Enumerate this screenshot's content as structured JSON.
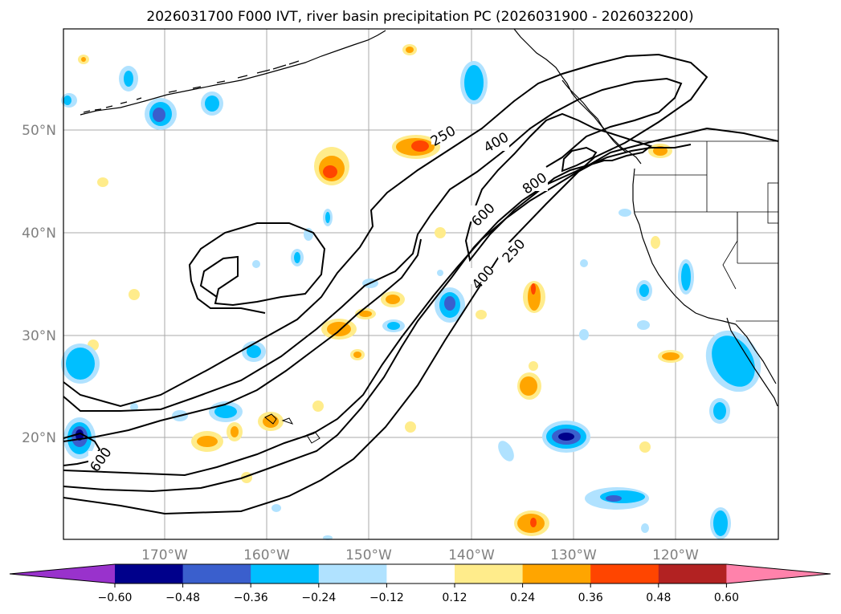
{
  "title": "2026031700 F000 IVT, river basin precipitation PC (2026031900 - 2026032200)",
  "map": {
    "lat_labels": [
      "50°N",
      "40°N",
      "30°N",
      "20°N"
    ],
    "lon_labels": [
      "170°W",
      "160°W",
      "150°W",
      "140°W",
      "130°W",
      "120°W"
    ],
    "gridline_color": "#a9a9a9",
    "coast_color": "#000000"
  },
  "contours": {
    "ivt_levels": [
      250,
      400,
      600,
      800
    ],
    "labels": [
      "250",
      "400",
      "600",
      "800",
      "250",
      "400",
      "600"
    ]
  },
  "colorbar": {
    "ticks": [
      "−0.60",
      "−0.48",
      "−0.36",
      "−0.24",
      "−0.12",
      "0.12",
      "0.24",
      "0.36",
      "0.48",
      "0.60"
    ],
    "colors": [
      "#9932cc",
      "#00008b",
      "#3a5fcd",
      "#00bfff",
      "#b0e2ff",
      "#ffffff",
      "#ffec8b",
      "#ffa500",
      "#ff4500",
      "#b22222",
      "#ff82ab"
    ]
  }
}
